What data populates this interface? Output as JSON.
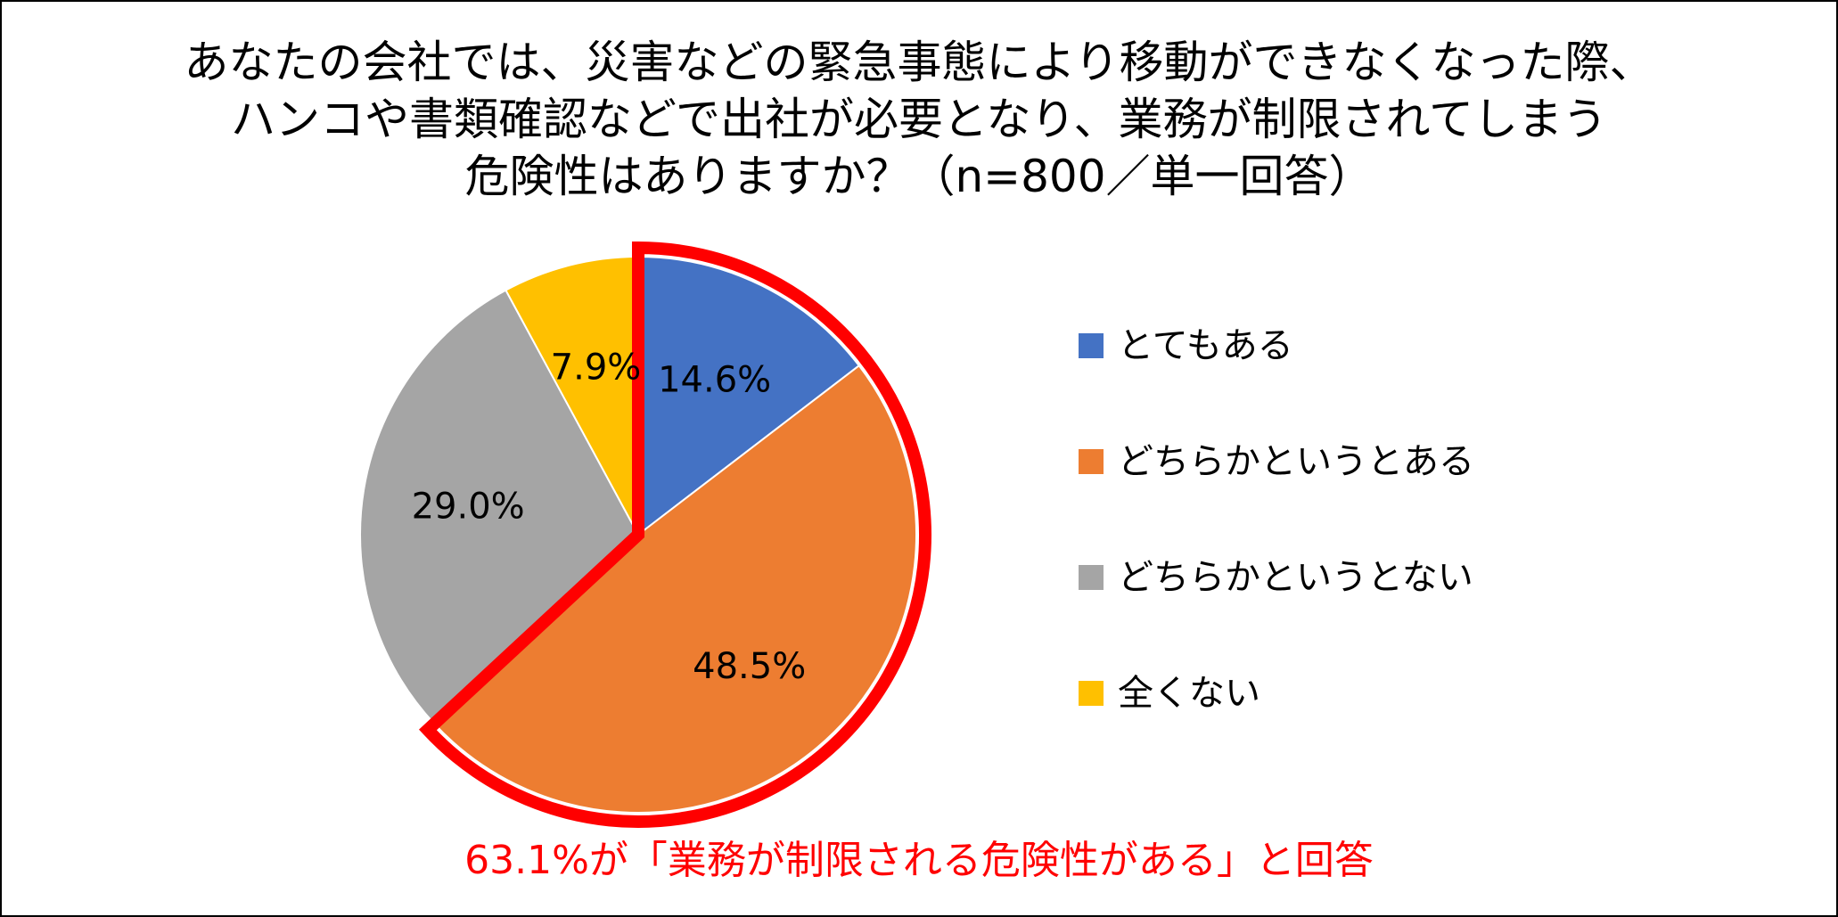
{
  "chart_data": {
    "type": "pie",
    "title_lines": [
      "あなたの会社では、災害などの緊急事態により移動ができなくなった際、",
      "ハンコや書類確認などで出社が必要となり、業務が制限されてしまう",
      "危険性はありますか？（n=800／単一回答）"
    ],
    "categories": [
      "とてもある",
      "どちらかというとある",
      "どちらかというとない",
      "全くない"
    ],
    "values": [
      14.6,
      48.5,
      29.0,
      7.9
    ],
    "value_labels": [
      "14.6%",
      "48.5%",
      "29.0%",
      "7.9%"
    ],
    "colors": [
      "#4472C4",
      "#ED7D31",
      "#A5A5A5",
      "#FFC000"
    ],
    "start_angle_deg": 0,
    "direction": "clockwise",
    "legend_position": "right",
    "highlight": {
      "categories": [
        "とてもある",
        "どちらかというとある"
      ],
      "outline_color": "#FF0000"
    }
  },
  "footnote": {
    "text": "63.1%が「業務が制限される危険性がある」と回答",
    "color": "#FF0000"
  }
}
